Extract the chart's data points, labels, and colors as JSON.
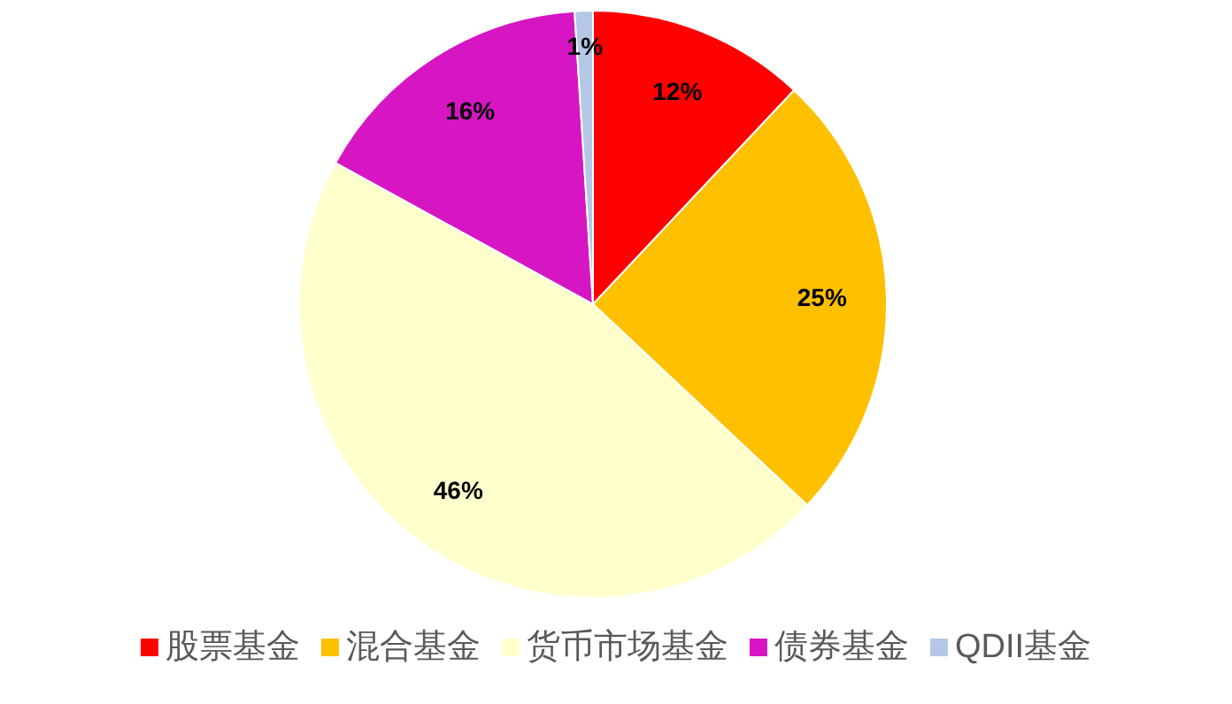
{
  "chart_data": {
    "type": "pie",
    "categories": [
      "股票基金",
      "混合基金",
      "货币市场基金",
      "债券基金",
      "QDII基金"
    ],
    "values": [
      12,
      25,
      46,
      16,
      1
    ],
    "colors": [
      "#ff0000",
      "#ffc000",
      "#ffffcc",
      "#d616c3",
      "#b4c7e7"
    ],
    "value_labels": [
      "12%",
      "25%",
      "46%",
      "16%",
      "1%"
    ],
    "legend": "bottom"
  }
}
